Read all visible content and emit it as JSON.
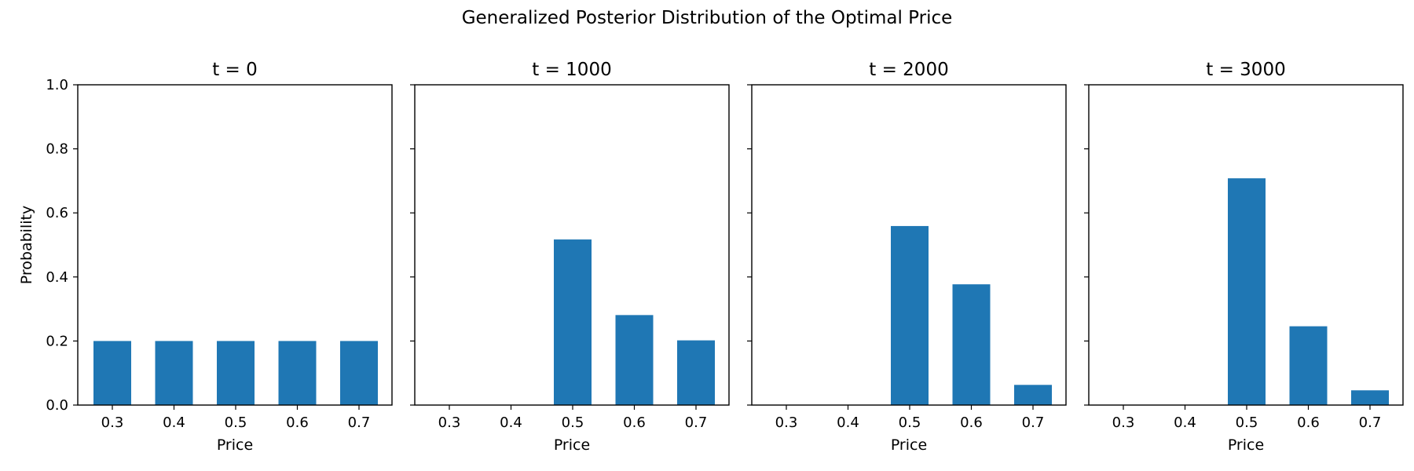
{
  "title": "Generalized Posterior Distribution of the Optimal Price",
  "colors": {
    "bar": "#1f77b4",
    "axis": "#000000",
    "background": "#ffffff"
  },
  "chart_data": [
    {
      "type": "bar",
      "title": "t = 0",
      "categories": [
        "0.3",
        "0.4",
        "0.5",
        "0.6",
        "0.7"
      ],
      "values": [
        0.2,
        0.2,
        0.2,
        0.2,
        0.2
      ],
      "xlabel": "Price",
      "ylabel": "Probability",
      "ylim": [
        0,
        1.0
      ],
      "yticks": [
        "0.0",
        "0.2",
        "0.4",
        "0.6",
        "0.8",
        "1.0"
      ],
      "show_ytick_labels": true,
      "grid": false
    },
    {
      "type": "bar",
      "title": "t = 1000",
      "categories": [
        "0.3",
        "0.4",
        "0.5",
        "0.6",
        "0.7"
      ],
      "values": [
        0.0,
        0.0,
        0.517,
        0.281,
        0.202
      ],
      "xlabel": "Price",
      "ylabel": "",
      "ylim": [
        0,
        1.0
      ],
      "yticks": [
        "0.0",
        "0.2",
        "0.4",
        "0.6",
        "0.8",
        "1.0"
      ],
      "show_ytick_labels": false,
      "grid": false
    },
    {
      "type": "bar",
      "title": "t = 2000",
      "categories": [
        "0.3",
        "0.4",
        "0.5",
        "0.6",
        "0.7"
      ],
      "values": [
        0.0,
        0.0,
        0.559,
        0.377,
        0.063
      ],
      "xlabel": "Price",
      "ylabel": "",
      "ylim": [
        0,
        1.0
      ],
      "yticks": [
        "0.0",
        "0.2",
        "0.4",
        "0.6",
        "0.8",
        "1.0"
      ],
      "show_ytick_labels": false,
      "grid": false
    },
    {
      "type": "bar",
      "title": "t = 3000",
      "categories": [
        "0.3",
        "0.4",
        "0.5",
        "0.6",
        "0.7"
      ],
      "values": [
        0.0,
        0.0,
        0.708,
        0.246,
        0.046
      ],
      "xlabel": "Price",
      "ylabel": "",
      "ylim": [
        0,
        1.0
      ],
      "yticks": [
        "0.0",
        "0.2",
        "0.4",
        "0.6",
        "0.8",
        "1.0"
      ],
      "show_ytick_labels": false,
      "grid": false
    }
  ]
}
